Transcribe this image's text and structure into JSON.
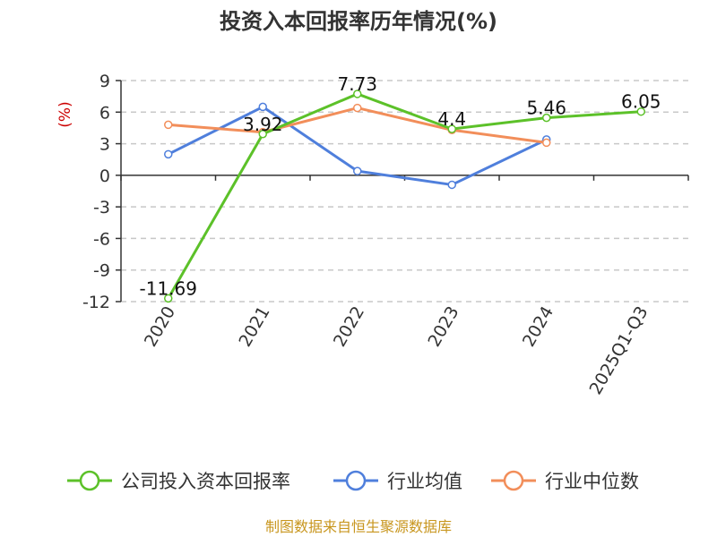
{
  "chart_data": {
    "type": "line",
    "title": "投资入本回报率历年情况(%)",
    "ylabel": "(%)",
    "categories": [
      "2020",
      "2021",
      "2022",
      "2023",
      "2024",
      "2025Q1-Q3"
    ],
    "ylim": [
      -12,
      9
    ],
    "yticks": [
      9,
      6,
      3,
      0,
      -3,
      -6,
      -9,
      -12
    ],
    "grid": true,
    "legend_position": "bottom",
    "series": [
      {
        "name": "公司投入资本回报率",
        "color": "#5cc129",
        "values": [
          -11.69,
          3.92,
          7.73,
          4.4,
          5.46,
          6.05
        ],
        "labels": [
          "-11.69",
          "3.92",
          "7.73",
          "4.4",
          "5.46",
          "6.05"
        ]
      },
      {
        "name": "行业均值",
        "color": "#4f7fdc",
        "values": [
          2.0,
          6.5,
          0.4,
          -0.9,
          3.4,
          null
        ]
      },
      {
        "name": "行业中位数",
        "color": "#f28e5a",
        "values": [
          4.8,
          4.1,
          6.4,
          4.3,
          3.1,
          null
        ]
      }
    ]
  },
  "footer": {
    "source": "制图数据来自恒生聚源数据库"
  }
}
